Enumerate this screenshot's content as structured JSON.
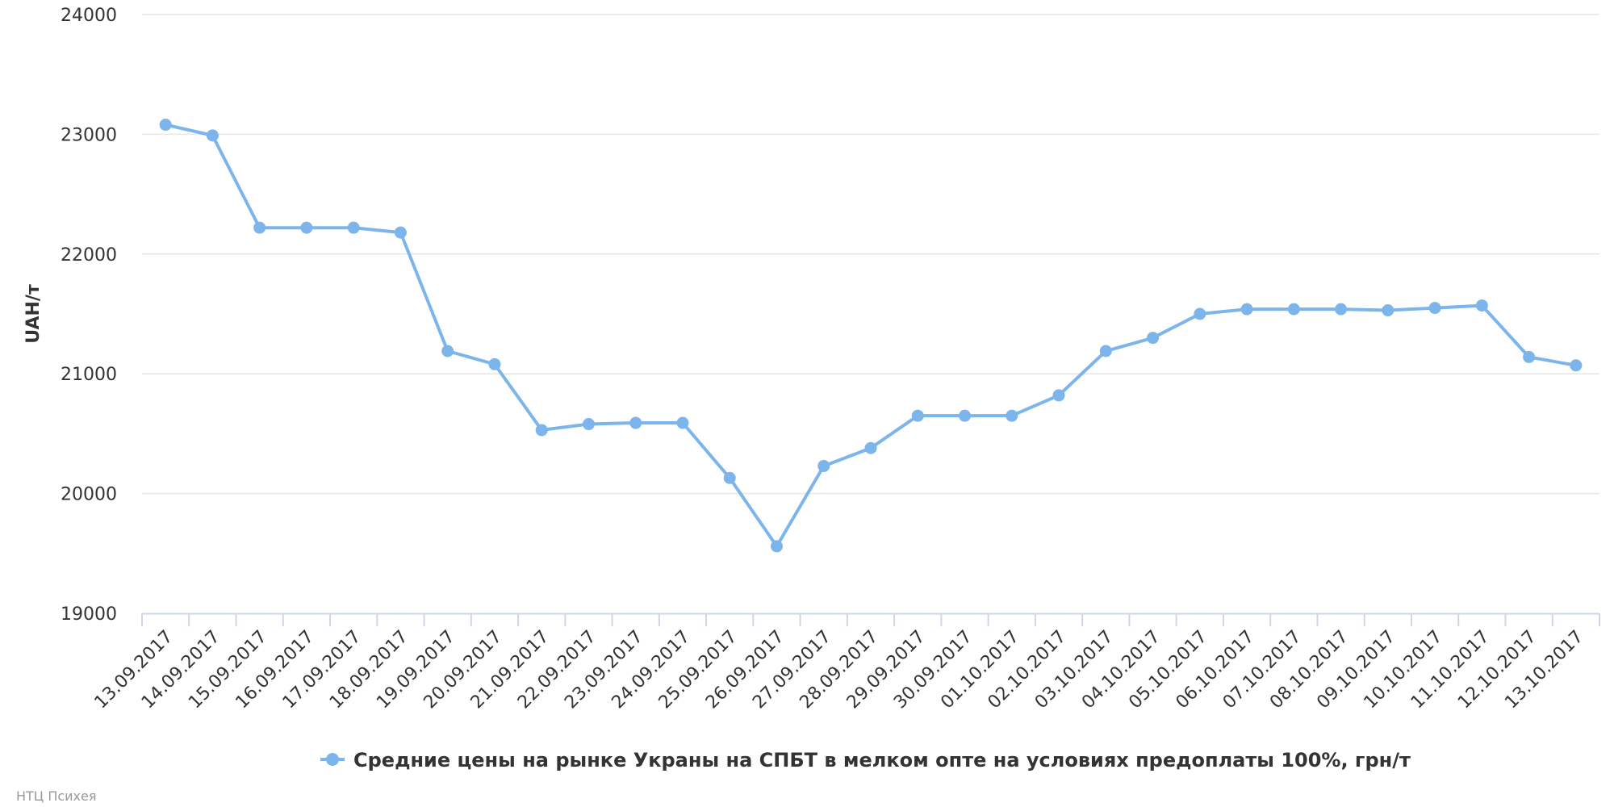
{
  "chart_data": {
    "type": "line",
    "ylabel": "UAH/т",
    "ylim": [
      19000,
      24000
    ],
    "yticks": [
      "19000",
      "20000",
      "21000",
      "22000",
      "23000",
      "24000"
    ],
    "grid": true,
    "legend_position": "bottom-center",
    "categories": [
      "13.09.2017",
      "14.09.2017",
      "15.09.2017",
      "16.09.2017",
      "17.09.2017",
      "18.09.2017",
      "19.09.2017",
      "20.09.2017",
      "21.09.2017",
      "22.09.2017",
      "23.09.2017",
      "24.09.2017",
      "25.09.2017",
      "26.09.2017",
      "27.09.2017",
      "28.09.2017",
      "29.09.2017",
      "30.09.2017",
      "01.10.2017",
      "02.10.2017",
      "03.10.2017",
      "04.10.2017",
      "05.10.2017",
      "06.10.2017",
      "07.10.2017",
      "08.10.2017",
      "09.10.2017",
      "10.10.2017",
      "11.10.2017",
      "12.10.2017",
      "13.10.2017"
    ],
    "series": [
      {
        "name": "Средние цены на рынке Украны на СПБТ в мелком опте на условиях предоплаты 100%, грн/т",
        "color": "#7cb5ec",
        "values": [
          23080,
          22990,
          22220,
          22220,
          22220,
          22180,
          21190,
          21080,
          20530,
          20580,
          20590,
          20590,
          20130,
          19560,
          20230,
          20380,
          20650,
          20650,
          20650,
          20820,
          21190,
          21300,
          21500,
          21540,
          21540,
          21540,
          21530,
          21550,
          21570,
          21140,
          21070
        ]
      }
    ]
  },
  "credits": "НТЦ Психея",
  "colors": {
    "grid": "#e6e6e6",
    "axis": "#ccd6eb",
    "text": "#333333"
  }
}
